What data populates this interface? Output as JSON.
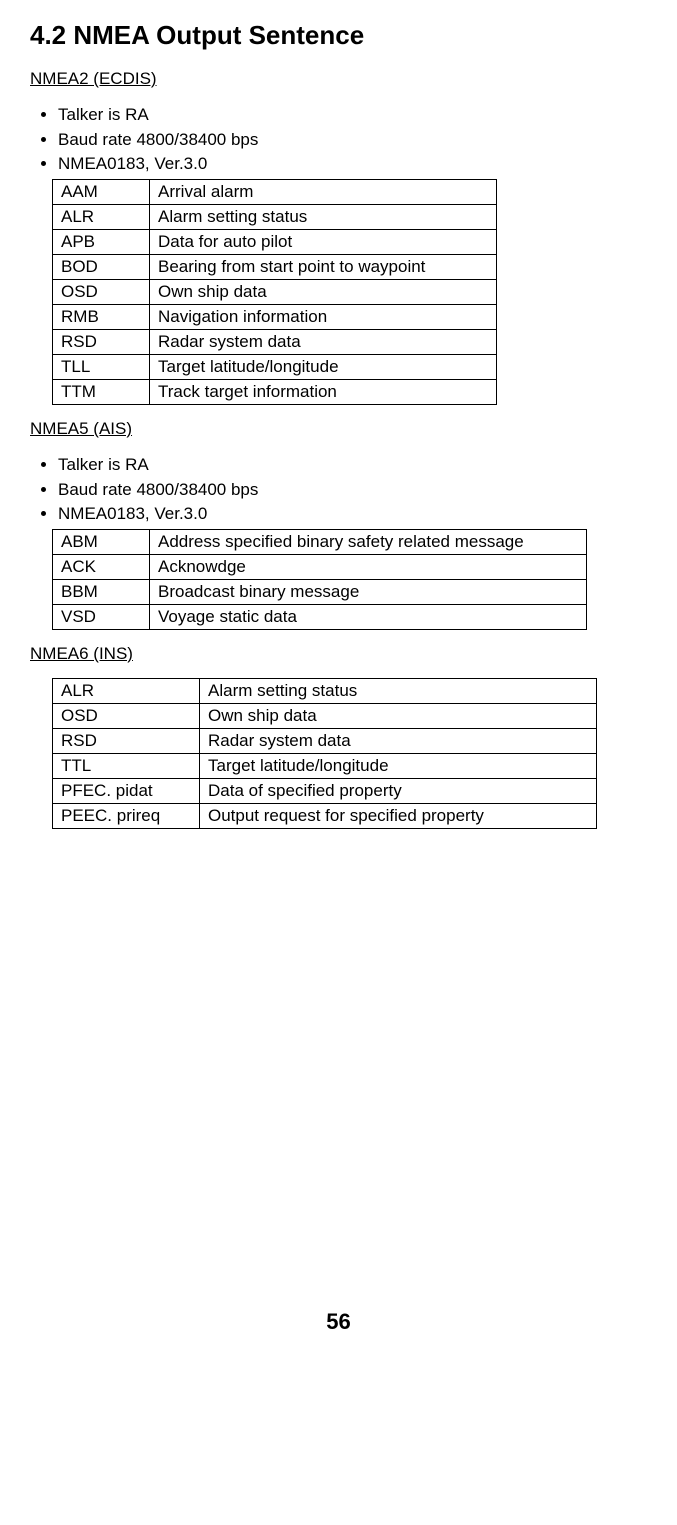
{
  "heading": "4.2  NMEA Output Sentence",
  "section1": {
    "subtitle": "NMEA2 (ECDIS)",
    "bullets": [
      "Talker is RA",
      "Baud rate 4800/38400 bps",
      "NMEA0183, Ver.3.0"
    ],
    "rows": [
      [
        "AAM",
        "Arrival alarm"
      ],
      [
        "ALR",
        "Alarm setting status"
      ],
      [
        "APB",
        "Data for auto pilot"
      ],
      [
        "BOD",
        "Bearing from start point to waypoint"
      ],
      [
        "OSD",
        "Own ship data"
      ],
      [
        "RMB",
        "Navigation information"
      ],
      [
        "RSD",
        "Radar system data"
      ],
      [
        "TLL",
        "Target latitude/longitude"
      ],
      [
        "TTM",
        "Track target information"
      ]
    ]
  },
  "section2": {
    "subtitle": "NMEA5 (AIS)",
    "bullets": [
      "Talker is RA",
      "Baud rate 4800/38400 bps",
      "NMEA0183, Ver.3.0"
    ],
    "rows": [
      [
        "ABM",
        "Address specified binary safety related message"
      ],
      [
        "ACK",
        "Acknowdge"
      ],
      [
        "BBM",
        "Broadcast binary message"
      ],
      [
        "VSD",
        "Voyage static data"
      ]
    ]
  },
  "section3": {
    "subtitle": "NMEA6 (INS)",
    "rows": [
      [
        "ALR",
        "Alarm setting status"
      ],
      [
        "OSD",
        "Own ship data"
      ],
      [
        "RSD",
        "Radar system data"
      ],
      [
        "TTL",
        "Target latitude/longitude"
      ],
      [
        "PFEC. pidat",
        "Data of specified property"
      ],
      [
        "PEEC. prireq",
        "Output request for specified property"
      ]
    ]
  },
  "pageNumber": "56"
}
